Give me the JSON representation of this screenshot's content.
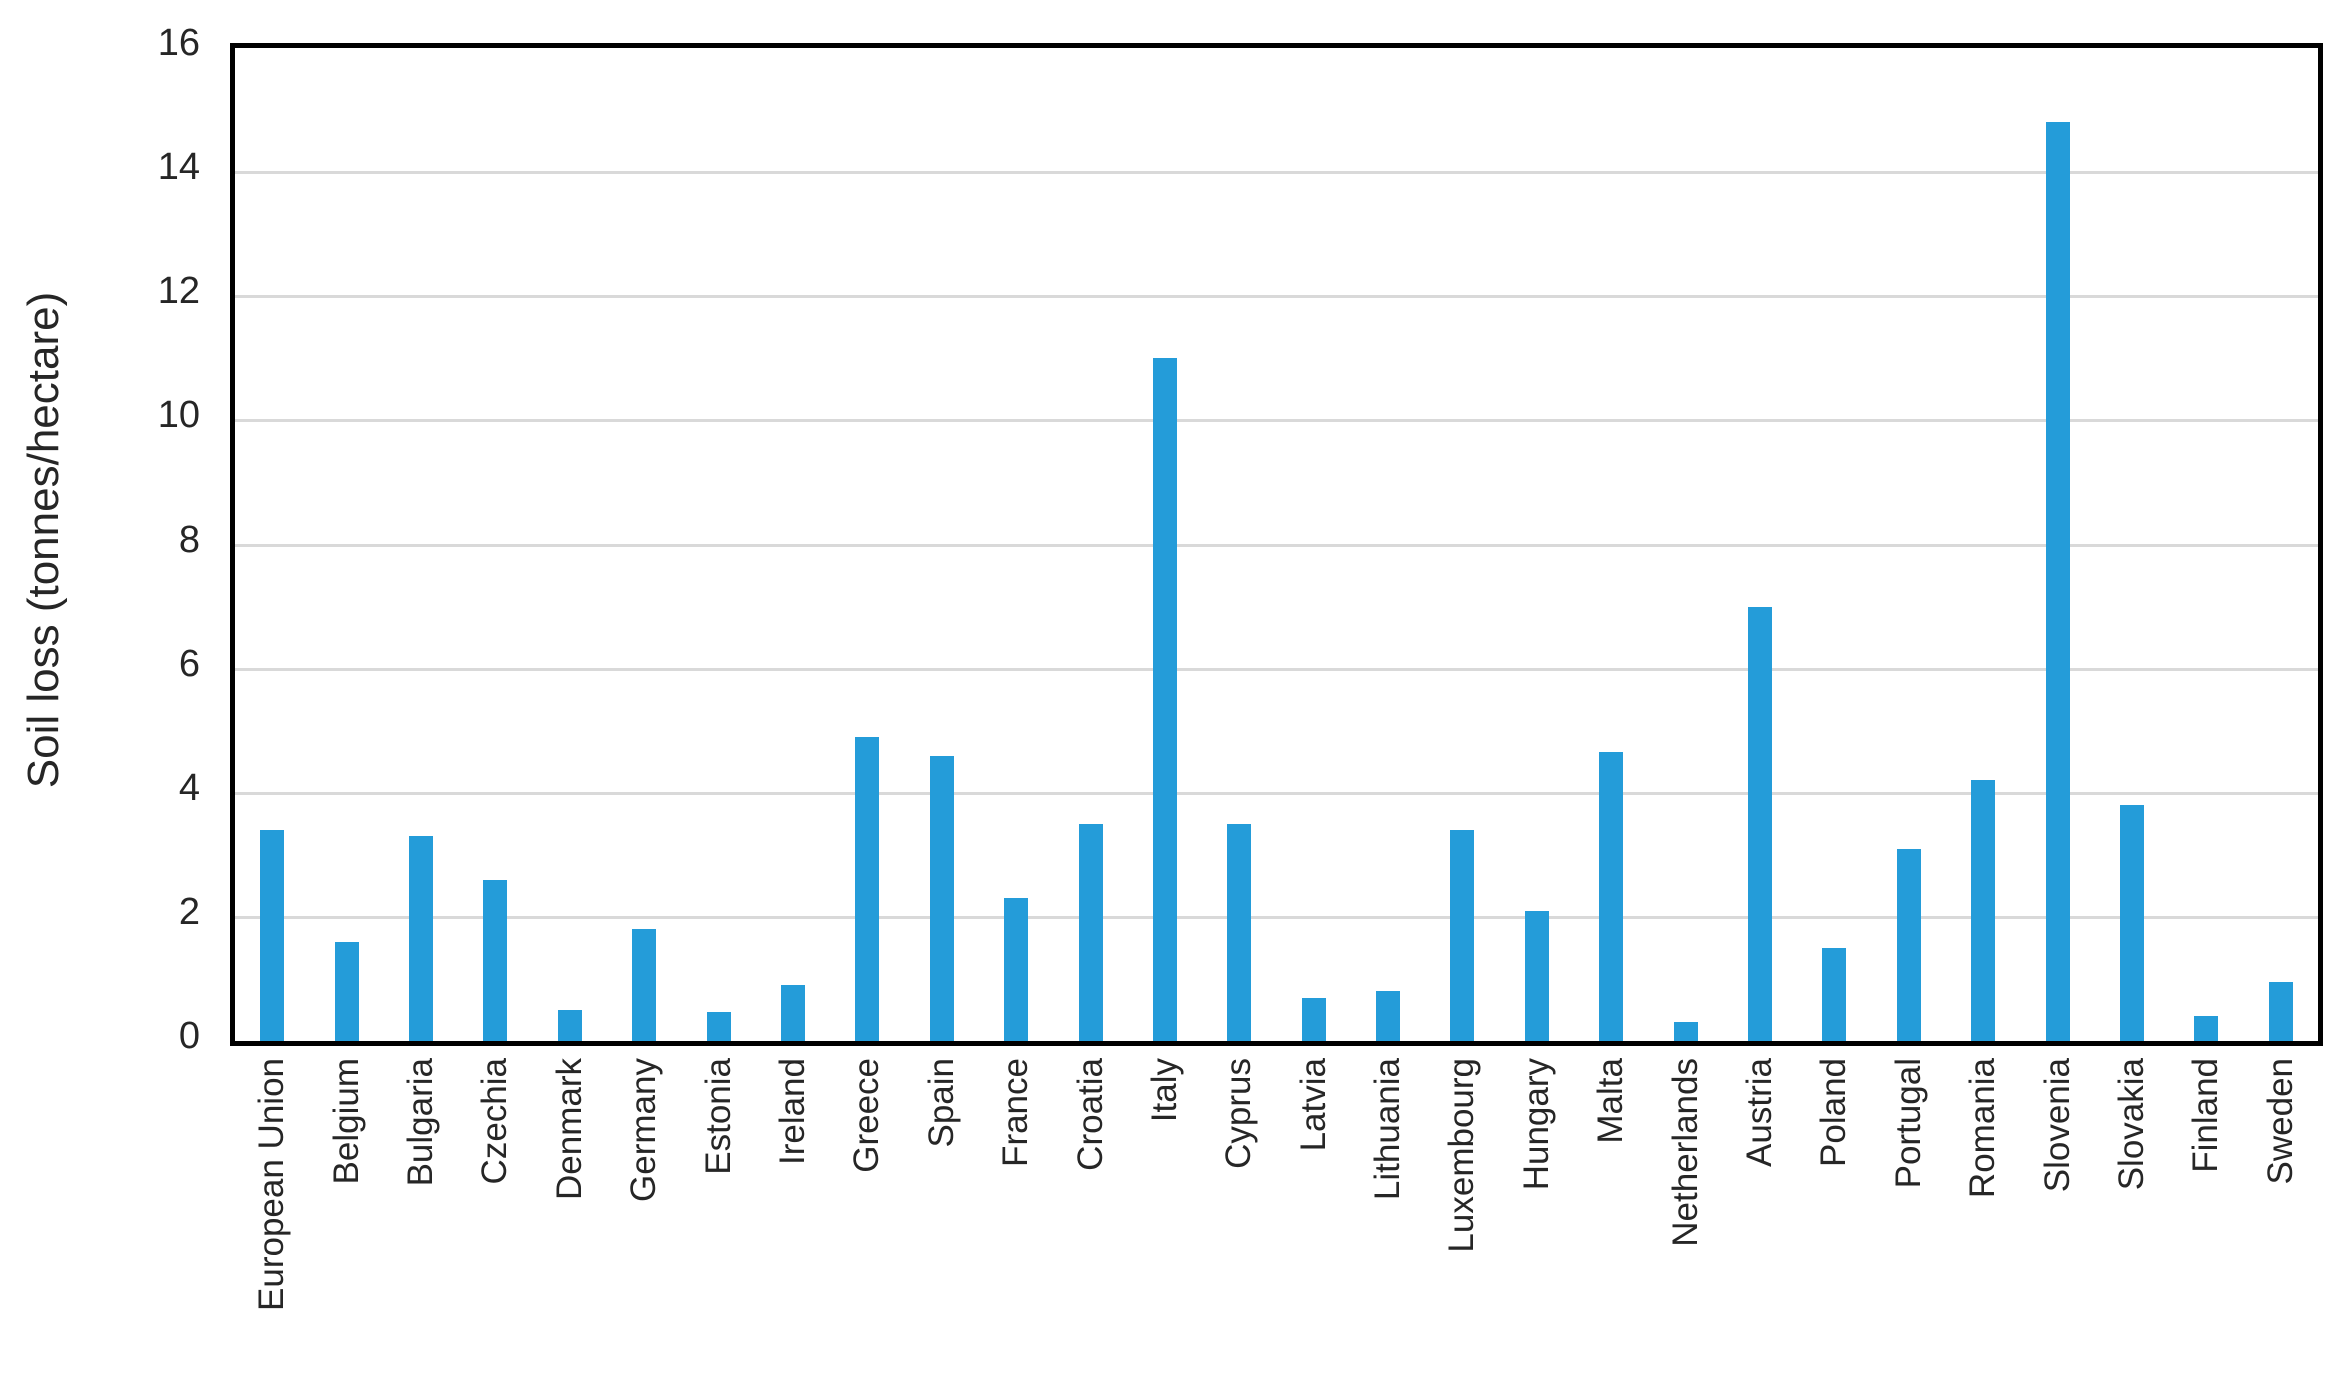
{
  "chart_data": {
    "type": "bar",
    "title": "",
    "xlabel": "",
    "ylabel": "Soil loss (tonnes/hectare)",
    "ylim": [
      0,
      16
    ],
    "ytick_step": 2,
    "grid": "horizontal-light-gray",
    "legend": "none",
    "bar_color": "#249CD9",
    "gridline_color": "#d9d9d9",
    "axis_border_color": "#000000",
    "text_color": "#262626",
    "categories": [
      "European Union",
      "Belgium",
      "Bulgaria",
      "Czechia",
      "Denmark",
      "Germany",
      "Estonia",
      "Ireland",
      "Greece",
      "Spain",
      "France",
      "Croatia",
      "Italy",
      "Cyprus",
      "Latvia",
      "Lithuania",
      "Luxembourg",
      "Hungary",
      "Malta",
      "Netherlands",
      "Austria",
      "Poland",
      "Portugal",
      "Romania",
      "Slovenia",
      "Slovakia",
      "Finland",
      "Sweden"
    ],
    "values": [
      3.4,
      1.6,
      3.3,
      2.6,
      0.5,
      1.8,
      0.47,
      0.9,
      4.9,
      4.6,
      2.3,
      3.5,
      11.0,
      3.5,
      0.7,
      0.8,
      3.4,
      2.1,
      4.65,
      0.3,
      7.0,
      1.5,
      3.1,
      4.2,
      14.8,
      3.8,
      0.4,
      0.95
    ],
    "ytick_labels": [
      "0",
      "2",
      "4",
      "6",
      "8",
      "10",
      "12",
      "14",
      "16"
    ]
  }
}
